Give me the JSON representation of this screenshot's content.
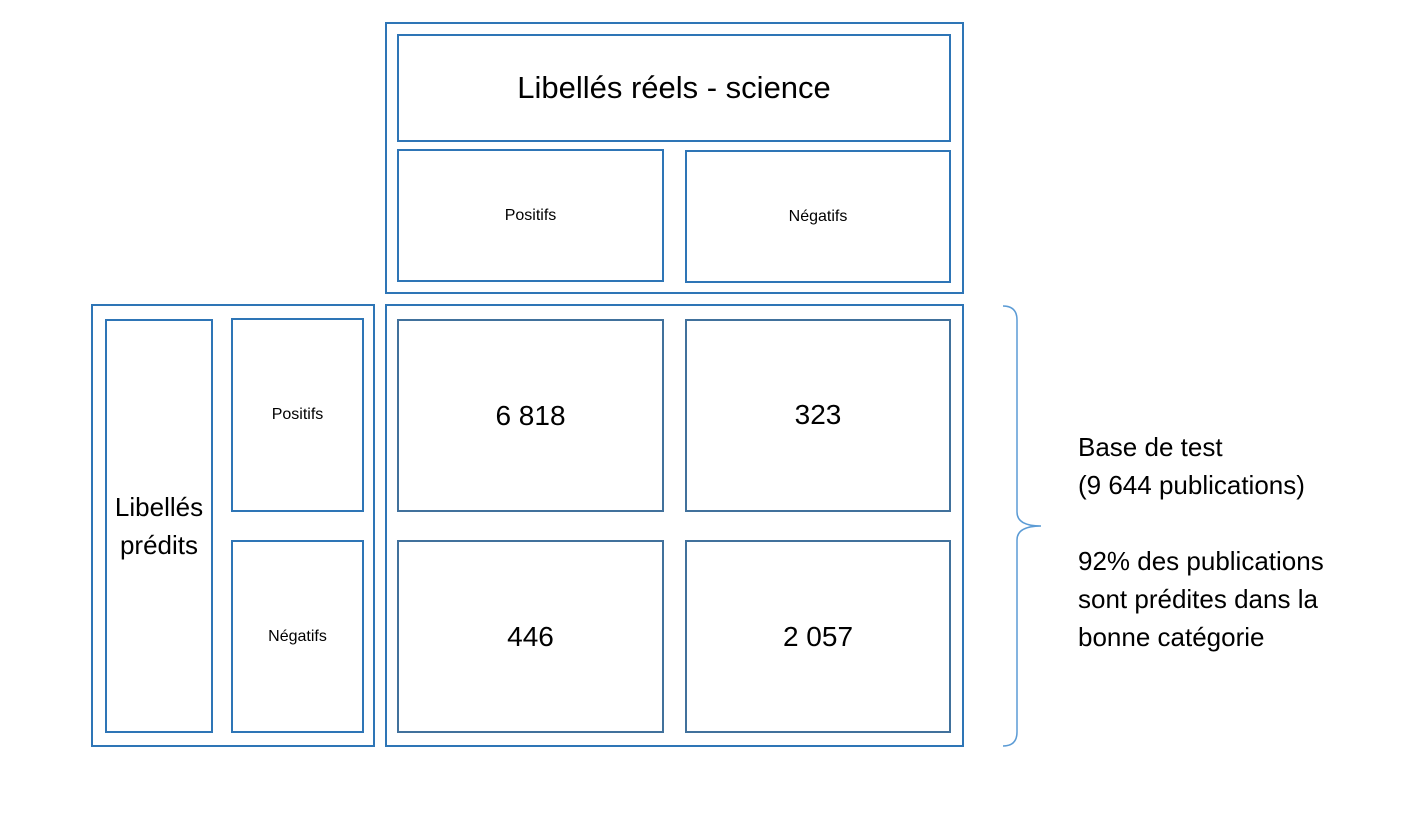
{
  "header": {
    "title": "Libellés réels - science",
    "col_positive": "Positifs",
    "col_negative": "Négatifs"
  },
  "side": {
    "title": "Libellés prédits",
    "row_positive": "Positifs",
    "row_negative": "Négatifs"
  },
  "matrix": {
    "pos_pos": "6 818",
    "pos_neg": "323",
    "neg_pos": "446",
    "neg_neg": "2 057"
  },
  "annotation": {
    "line1": "Base de test",
    "line2": "(9 644 publications)",
    "line3": "92% des publications",
    "line4": "sont prédites dans la",
    "line5": "bonne catégorie"
  },
  "colors": {
    "border": "#2e75b6",
    "cell_border": "#41719c",
    "brace": "#5b9bd5"
  }
}
